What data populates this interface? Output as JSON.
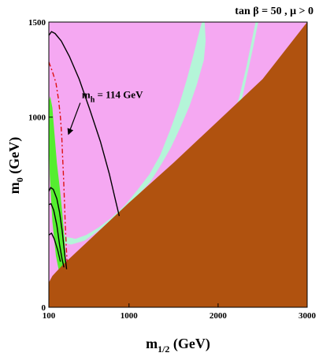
{
  "chart_data": {
    "type": "area",
    "title": "tan β = 50 ,  μ > 0",
    "xlabel": "m",
    "xlabel_sub": "1/2",
    "xlabel_unit": " (GeV)",
    "ylabel": "m",
    "ylabel_sub": "0",
    "ylabel_unit": " (GeV)",
    "xlim": [
      100,
      3000
    ],
    "ylim": [
      0,
      1500
    ],
    "x_ticks": [
      {
        "value": 100,
        "label": "100"
      },
      {
        "value": 1000,
        "label": "1000"
      },
      {
        "value": 2000,
        "label": "2000"
      },
      {
        "value": 3000,
        "label": "3000"
      }
    ],
    "y_ticks": [
      {
        "value": 0,
        "label": "0"
      },
      {
        "value": 1000,
        "label": "1000"
      },
      {
        "value": 1500,
        "label": "1500"
      }
    ],
    "annotation": {
      "text_main": "m",
      "text_sub": "h",
      "text_rest": " = 114 GeV",
      "anchor": [
        470,
        1100
      ],
      "arrow_to": [
        320,
        910
      ]
    },
    "colors": {
      "pink": "#f5a8f2",
      "mint": "#b4f5d8",
      "green": "#55ee2f",
      "brown": "#b0520f",
      "red": "#dd1111",
      "black": "#000000"
    },
    "regions": [
      {
        "name": "pink-region",
        "color": "#f5a8f2",
        "points": [
          [
            100,
            0
          ],
          [
            100,
            1500
          ],
          [
            3000,
            1500
          ],
          [
            3000,
            0
          ]
        ]
      },
      {
        "name": "mint-band-left",
        "color": "#b4f5d8",
        "points": [
          [
            140,
            620
          ],
          [
            200,
            420
          ],
          [
            300,
            370
          ],
          [
            400,
            360
          ],
          [
            520,
            380
          ],
          [
            660,
            420
          ],
          [
            800,
            470
          ],
          [
            960,
            540
          ],
          [
            1100,
            620
          ],
          [
            1230,
            700
          ],
          [
            1350,
            800
          ],
          [
            1460,
            930
          ],
          [
            1560,
            1060
          ],
          [
            1650,
            1200
          ],
          [
            1730,
            1340
          ],
          [
            1800,
            1470
          ],
          [
            1820,
            1500
          ],
          [
            1850,
            1500
          ],
          [
            1860,
            1400
          ],
          [
            1840,
            1300
          ],
          [
            1760,
            1170
          ],
          [
            1680,
            1060
          ],
          [
            1580,
            950
          ],
          [
            1470,
            840
          ],
          [
            1360,
            750
          ],
          [
            1240,
            660
          ],
          [
            1100,
            590
          ],
          [
            950,
            520
          ],
          [
            800,
            460
          ],
          [
            650,
            400
          ],
          [
            500,
            350
          ],
          [
            350,
            330
          ],
          [
            250,
            340
          ],
          [
            170,
            380
          ]
        ]
      },
      {
        "name": "mint-band-right",
        "color": "#b4f5d8",
        "points": [
          [
            2420,
            1500
          ],
          [
            2450,
            1500
          ],
          [
            2400,
            1380
          ],
          [
            2330,
            1230
          ],
          [
            2250,
            1060
          ],
          [
            2170,
            930
          ],
          [
            2080,
            860
          ],
          [
            2060,
            880
          ],
          [
            2150,
            960
          ],
          [
            2240,
            1110
          ],
          [
            2320,
            1270
          ]
        ]
      },
      {
        "name": "green-strip",
        "color": "#55ee2f",
        "points": [
          [
            100,
            1080
          ],
          [
            115,
            1110
          ],
          [
            140,
            1050
          ],
          [
            165,
            900
          ],
          [
            190,
            760
          ],
          [
            225,
            620
          ],
          [
            255,
            480
          ],
          [
            280,
            330
          ],
          [
            300,
            180
          ],
          [
            270,
            130
          ],
          [
            230,
            150
          ],
          [
            180,
            270
          ],
          [
            140,
            450
          ],
          [
            110,
            700
          ],
          [
            100,
            880
          ]
        ]
      },
      {
        "name": "brown-excluded-region",
        "color": "#b0520f",
        "points": [
          [
            100,
            0
          ],
          [
            100,
            130
          ],
          [
            140,
            165
          ],
          [
            180,
            185
          ],
          [
            260,
            225
          ],
          [
            500,
            330
          ],
          [
            1000,
            550
          ],
          [
            1500,
            760
          ],
          [
            2000,
            980
          ],
          [
            2500,
            1200
          ],
          [
            3000,
            1500
          ],
          [
            3000,
            0
          ]
        ]
      }
    ],
    "lines": [
      {
        "name": "outer-black-contour",
        "color": "#000000",
        "dash": "",
        "points": [
          [
            100,
            1430
          ],
          [
            130,
            1450
          ],
          [
            170,
            1440
          ],
          [
            240,
            1400
          ],
          [
            330,
            1320
          ],
          [
            440,
            1200
          ],
          [
            560,
            1040
          ],
          [
            680,
            870
          ],
          [
            780,
            700
          ],
          [
            850,
            560
          ],
          [
            890,
            480
          ]
        ]
      },
      {
        "name": "middle-black-contour",
        "color": "#000000",
        "dash": "",
        "points": [
          [
            100,
            610
          ],
          [
            120,
            630
          ],
          [
            150,
            620
          ],
          [
            190,
            570
          ],
          [
            220,
            500
          ],
          [
            250,
            400
          ],
          [
            280,
            270
          ],
          [
            300,
            200
          ]
        ]
      },
      {
        "name": "inner-black-contour",
        "color": "#000000",
        "dash": "",
        "points": [
          [
            100,
            540
          ],
          [
            125,
            545
          ],
          [
            155,
            510
          ],
          [
            190,
            430
          ],
          [
            220,
            330
          ],
          [
            250,
            250
          ],
          [
            270,
            210
          ]
        ]
      },
      {
        "name": "small-black-contour",
        "color": "#000000",
        "dash": "",
        "points": [
          [
            100,
            380
          ],
          [
            130,
            390
          ],
          [
            160,
            360
          ],
          [
            200,
            300
          ],
          [
            230,
            240
          ]
        ]
      },
      {
        "name": "red-mh-contour",
        "color": "#dd1111",
        "dash": "6,3,2,3",
        "points": [
          [
            100,
            1290
          ],
          [
            140,
            1240
          ],
          [
            180,
            1180
          ],
          [
            210,
            1090
          ],
          [
            230,
            1000
          ],
          [
            245,
            900
          ],
          [
            255,
            790
          ],
          [
            265,
            680
          ],
          [
            275,
            560
          ],
          [
            285,
            430
          ],
          [
            295,
            320
          ],
          [
            305,
            240
          ]
        ]
      }
    ],
    "grid": false,
    "legend": "none"
  }
}
